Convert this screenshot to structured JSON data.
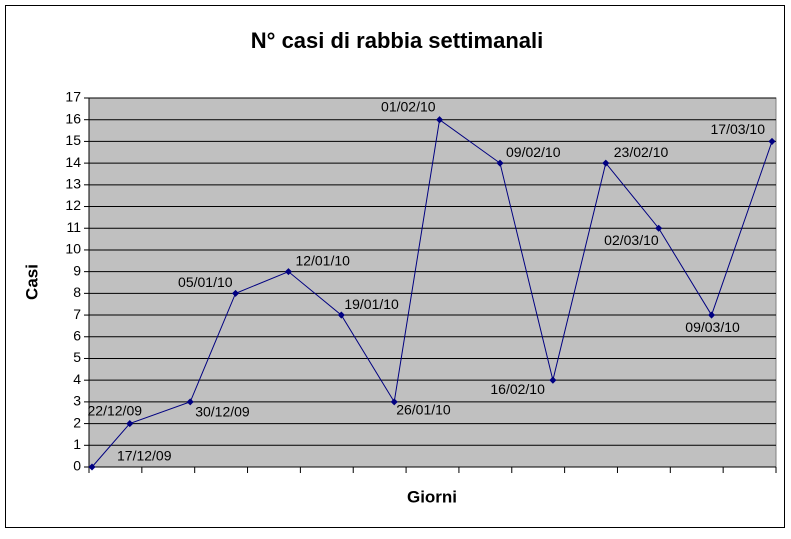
{
  "chart_data": {
    "type": "line",
    "title": "N° casi di rabbia settimanali",
    "x_label": "Giorni",
    "y_label": "Casi",
    "x": [
      "17/12/09",
      "22/12/09",
      "30/12/09",
      "05/01/10",
      "12/01/10",
      "19/01/10",
      "26/01/10",
      "01/02/10",
      "09/02/10",
      "16/02/10",
      "23/02/10",
      "02/03/10",
      "09/03/10",
      "17/03/10"
    ],
    "series": [
      {
        "color": "#000080",
        "values": [
          0,
          2,
          3,
          8,
          9,
          7,
          3,
          16,
          14,
          4,
          14,
          11,
          7,
          15
        ]
      }
    ],
    "ylim": [
      0,
      17
    ],
    "yticks": [
      0,
      1,
      2,
      3,
      4,
      5,
      6,
      7,
      8,
      9,
      10,
      11,
      12,
      13,
      14,
      15,
      16,
      17
    ],
    "grid": true,
    "plot_background": "#c0c0c0"
  }
}
